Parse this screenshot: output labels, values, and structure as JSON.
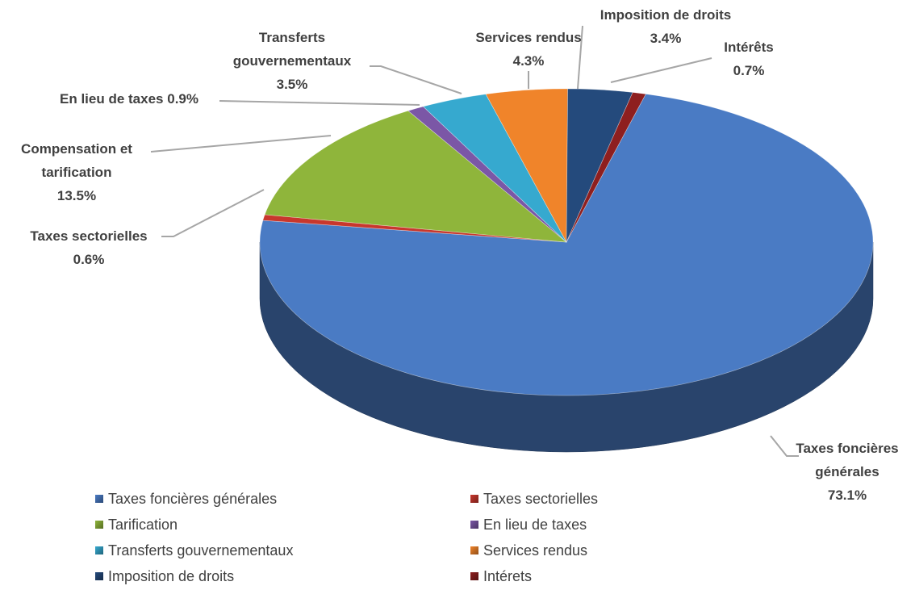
{
  "chart_data": {
    "type": "pie",
    "three_d": true,
    "start_angle": 15,
    "categories": [
      "Taxes foncières générales",
      "Taxes sectorielles",
      "Tarification",
      "En lieu de taxes",
      "Transferts gouvernementaux",
      "Services rendus",
      "Imposition de droits",
      "Intérets"
    ],
    "label_names": [
      "Taxes foncières générales",
      "Taxes sectorielles",
      "Compensation et tarification",
      "En lieu de taxes",
      "Transferts gouvernementaux",
      "Services rendus",
      "Imposition de droits",
      "Intérêts"
    ],
    "values": [
      73.1,
      0.6,
      13.5,
      0.9,
      3.5,
      4.3,
      3.4,
      0.7
    ],
    "value_labels": [
      "73.1%",
      "0.6%",
      "13.5%",
      "0.9%",
      "3.5%",
      "4.3%",
      "3.4%",
      "0.7%"
    ],
    "colors": [
      "#4a7bc4",
      "#c8372d",
      "#8fb53b",
      "#7b57a6",
      "#36a9cf",
      "#f0842a",
      "#244a7c",
      "#8e1f1f"
    ],
    "legend": "bottom"
  }
}
